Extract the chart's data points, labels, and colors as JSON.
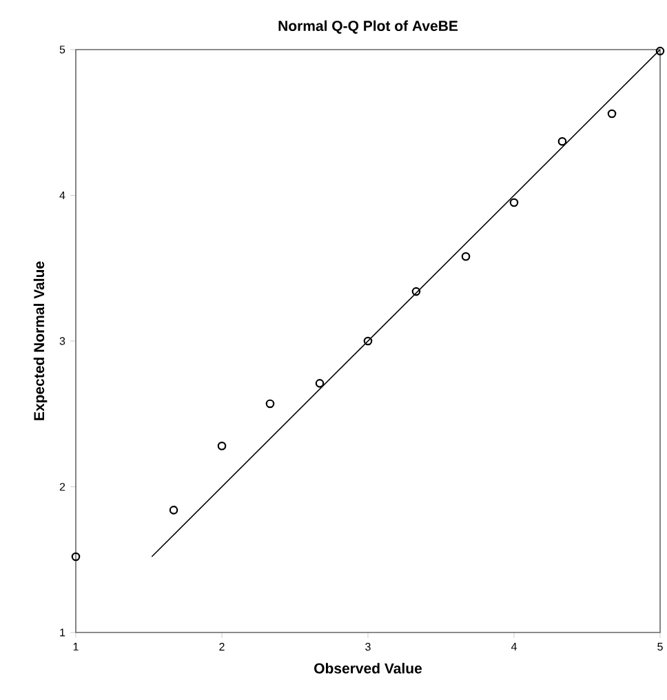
{
  "chart_data": {
    "type": "scatter",
    "title": "Normal Q-Q Plot of AveBE",
    "xlabel": "Observed Value",
    "ylabel": "Expected Normal Value",
    "series": [
      {
        "color": "#000000",
        "x": [
          1,
          1.67,
          2,
          2.33,
          2.67,
          3,
          3.33,
          3.67,
          4,
          4.33,
          4.67,
          5
        ],
        "values": [
          1.52,
          1.84,
          2.28,
          2.57,
          2.71,
          3.0,
          3.34,
          3.58,
          3.95,
          4.37,
          4.56,
          4.99
        ],
        "marker": "circle"
      },
      {
        "type": "line",
        "color": "#000000",
        "x": [
          1.52,
          5
        ],
        "values": [
          1.52,
          5
        ],
        "marker": "none",
        "line_style": "solid"
      }
    ],
    "xlim": [
      1,
      5
    ],
    "ylim": [
      1,
      5
    ],
    "xticks": [
      1,
      2,
      3,
      4,
      5
    ],
    "yticks": [
      1,
      2,
      3,
      4,
      5
    ],
    "grid": false
  }
}
